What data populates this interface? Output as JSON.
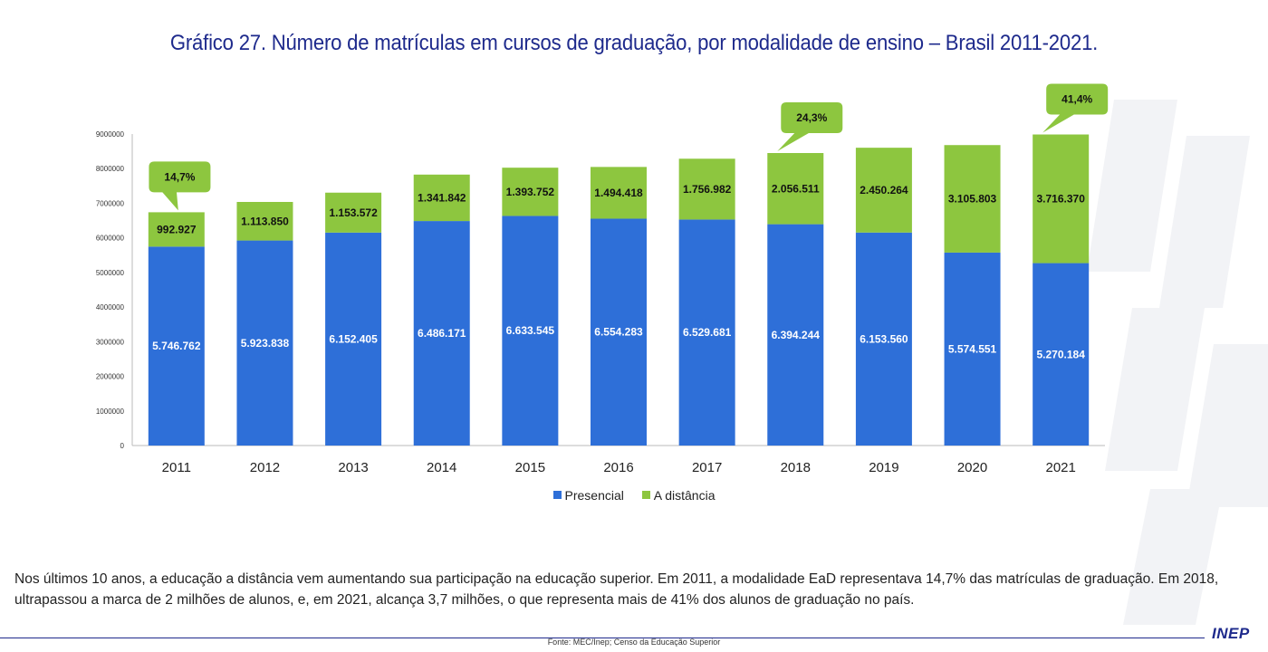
{
  "title": "Gráfico 27. Número de matrículas em cursos de graduação, por modalidade de ensino – Brasil 2011-2021.",
  "colors": {
    "presencial": "#2e6fd8",
    "distancia": "#8dc63f",
    "callout": "#8dc63f",
    "title": "#1e2a8c"
  },
  "chart_data": {
    "type": "bar",
    "stacked": true,
    "categories": [
      "2011",
      "2012",
      "2013",
      "2014",
      "2015",
      "2016",
      "2017",
      "2018",
      "2019",
      "2020",
      "2021"
    ],
    "series": [
      {
        "name": "Presencial",
        "values": [
          5746762,
          5923838,
          6152405,
          6486171,
          6633545,
          6554283,
          6529681,
          6394244,
          6153560,
          5574551,
          5270184
        ],
        "labels": [
          "5.746.762",
          "5.923.838",
          "6.152.405",
          "6.486.171",
          "6.633.545",
          "6.554.283",
          "6.529.681",
          "6.394.244",
          "6.153.560",
          "5.574.551",
          "5.270.184"
        ]
      },
      {
        "name": "A distância",
        "values": [
          992927,
          1113850,
          1153572,
          1341842,
          1393752,
          1494418,
          1756982,
          2056511,
          2450264,
          3105803,
          3716370
        ],
        "labels": [
          "992.927",
          "1.113.850",
          "1.153.572",
          "1.341.842",
          "1.393.752",
          "1.494.418",
          "1.756.982",
          "2.056.511",
          "2.450.264",
          "3.105.803",
          "3.716.370"
        ]
      }
    ],
    "ylim": [
      0,
      9000000
    ],
    "yticks": [
      "0",
      "1000000",
      "2000000",
      "3000000",
      "4000000",
      "5000000",
      "6000000",
      "7000000",
      "8000000",
      "9000000"
    ],
    "legend": "bottom",
    "annotations": [
      {
        "category": "2011",
        "text": "14,7%"
      },
      {
        "category": "2018",
        "text": "24,3%"
      },
      {
        "category": "2021",
        "text": "41,4%"
      }
    ]
  },
  "description": "Nos últimos 10 anos, a educação a distância vem aumentando sua participação na educação superior. Em 2011, a modalidade EaD representava 14,7% das matrículas de graduação. Em 2018, ultrapassou a marca de 2 milhões de alunos, e, em 2021, alcança 3,7 milhões, o que representa mais de 41% dos alunos de graduação no país.",
  "source": "Fonte: MEC/Inep; Censo da Educação Superior",
  "logo": "INEP"
}
